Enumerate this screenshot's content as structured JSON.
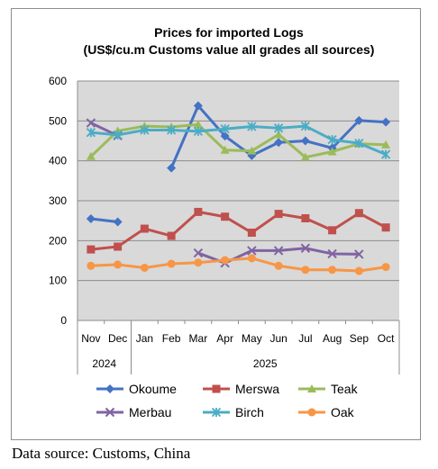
{
  "chart_data": {
    "type": "line",
    "title": "Prices for imported Logs",
    "subtitle": "(US$/cu.m Customs value all grades all sources)",
    "categories": [
      "Nov",
      "Dec",
      "Jan",
      "Feb",
      "Mar",
      "Apr",
      "May",
      "Jun",
      "Jul",
      "Aug",
      "Sep",
      "Oct"
    ],
    "year_groups": [
      {
        "label": "2024",
        "start": 0,
        "end": 1
      },
      {
        "label": "2025",
        "start": 2,
        "end": 11
      }
    ],
    "ylim": [
      0,
      600
    ],
    "yticks": [
      0,
      100,
      200,
      300,
      400,
      500,
      600
    ],
    "grid": true,
    "legend_position": "bottom",
    "series": [
      {
        "name": "Okoume",
        "color": "#4472c4",
        "marker": "diamond",
        "values": [
          255,
          247,
          null,
          382,
          538,
          462,
          413,
          446,
          450,
          432,
          501,
          497
        ]
      },
      {
        "name": "Merswa",
        "color": "#c0504d",
        "marker": "square",
        "values": [
          178,
          185,
          230,
          212,
          272,
          260,
          220,
          267,
          256,
          226,
          269,
          233
        ]
      },
      {
        "name": "Teak",
        "color": "#9bbb59",
        "marker": "triangle",
        "values": [
          411,
          475,
          487,
          485,
          491,
          427,
          425,
          466,
          409,
          423,
          443,
          440
        ]
      },
      {
        "name": "Merbau",
        "color": "#8064a2",
        "marker": "x",
        "values": [
          495,
          463,
          null,
          null,
          169,
          144,
          175,
          175,
          181,
          167,
          166,
          null
        ]
      },
      {
        "name": "Birch",
        "color": "#4bacc6",
        "marker": "star",
        "values": [
          471,
          465,
          477,
          477,
          474,
          480,
          486,
          482,
          487,
          453,
          444,
          416
        ]
      },
      {
        "name": "Oak",
        "color": "#f79646",
        "marker": "circle",
        "values": [
          137,
          140,
          132,
          142,
          145,
          151,
          156,
          137,
          127,
          127,
          124,
          134
        ]
      }
    ]
  },
  "source_note": "Data source: Customs, China"
}
